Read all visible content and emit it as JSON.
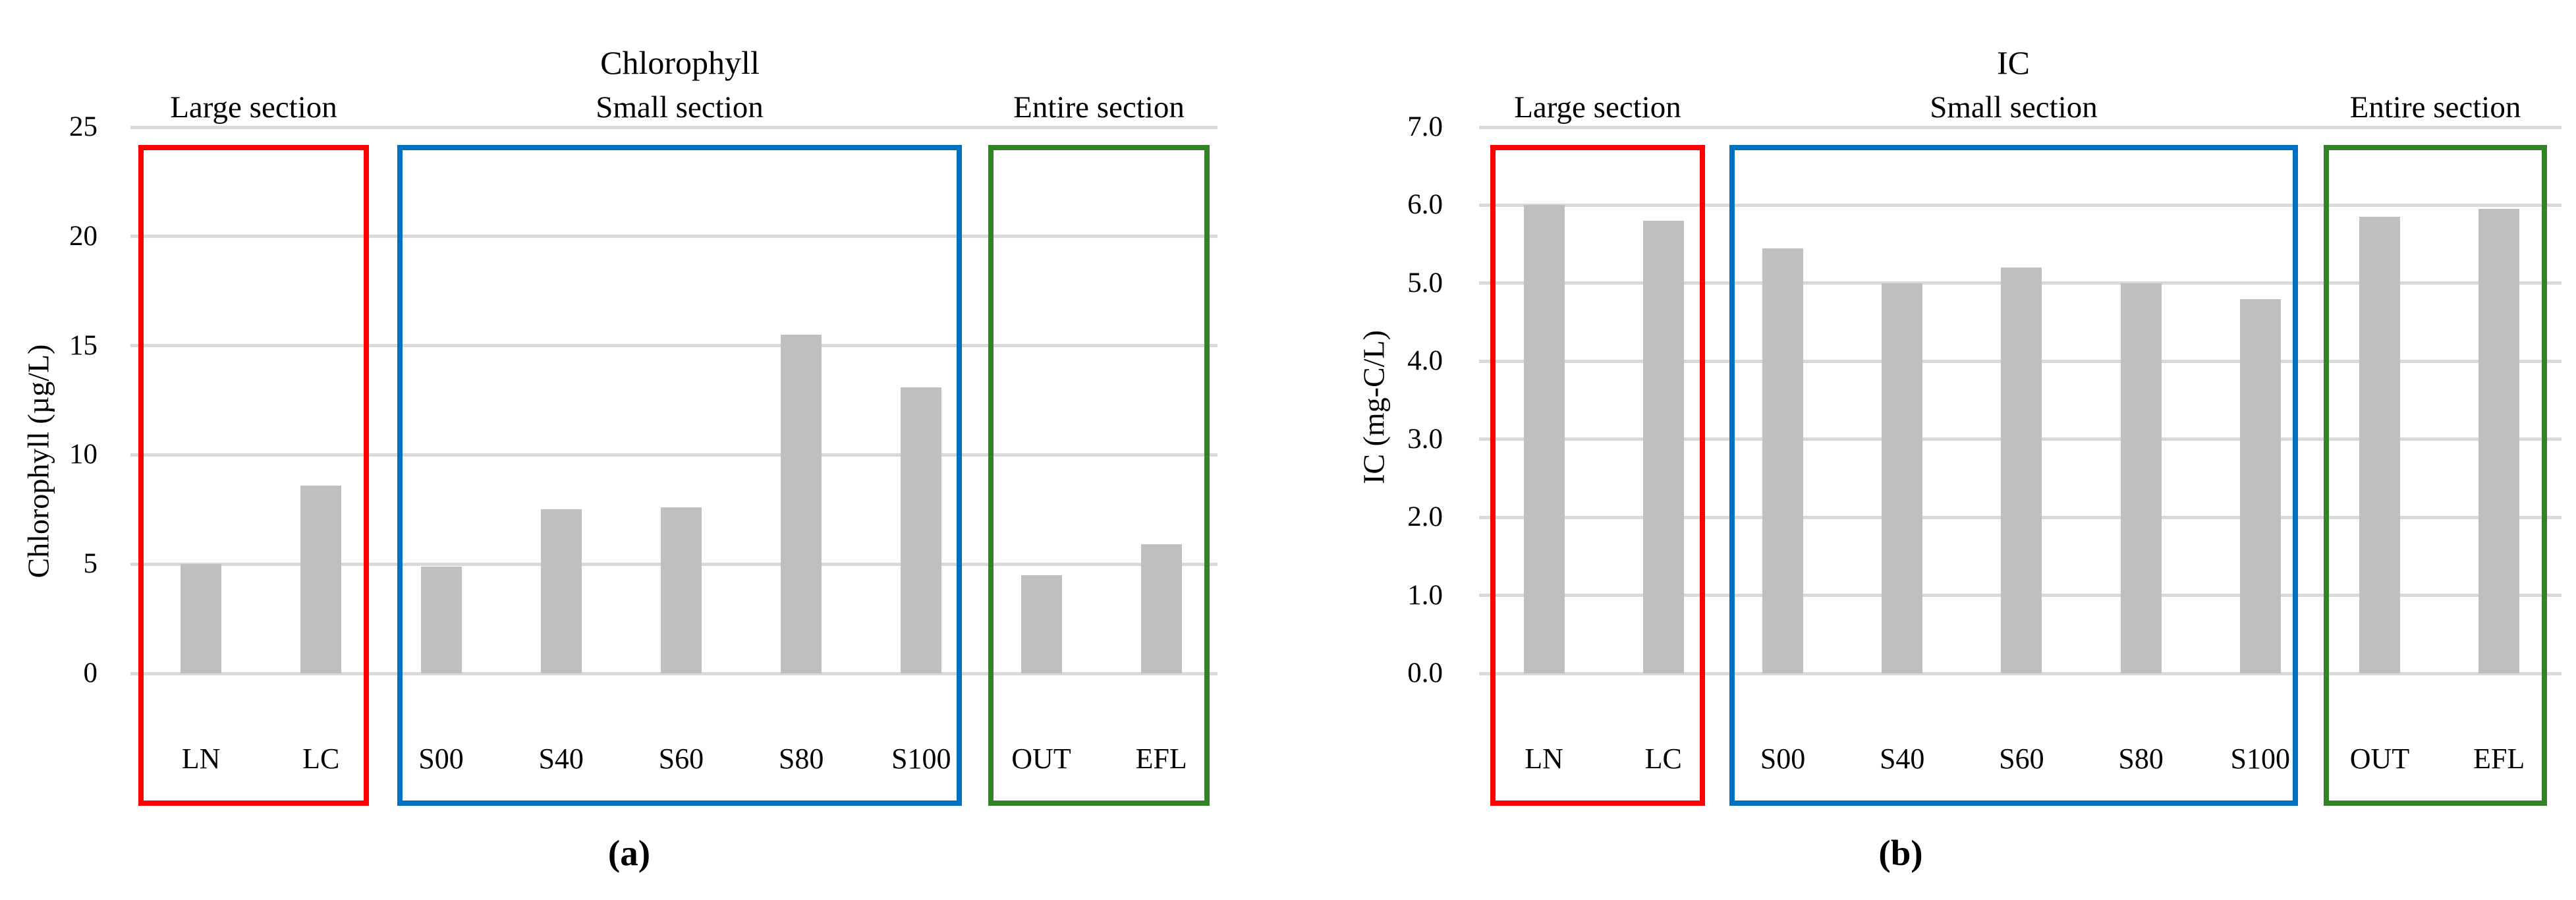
{
  "figure": {
    "background": "#ffffff",
    "bar_color": "#bfbfbf",
    "gridline_color": "#d9d9d9"
  },
  "chart_data": [
    {
      "type": "bar",
      "title": "Chlorophyll",
      "ylabel": "Chlorophyll (µg/L)",
      "caption": "(a)",
      "categories": [
        "LN",
        "LC",
        "S00",
        "S40",
        "S60",
        "S80",
        "S100",
        "OUT",
        "EFL"
      ],
      "values": [
        5.0,
        8.6,
        4.9,
        7.5,
        7.6,
        15.5,
        13.1,
        4.5,
        5.9
      ],
      "ylim": [
        0,
        25
      ],
      "yticks": [
        "0",
        "5",
        "10",
        "15",
        "20",
        "25"
      ],
      "grid": true,
      "legend": "none",
      "bar_color": "#bfbfbf",
      "sections": [
        {
          "label": "Large section",
          "color": "#ff0000",
          "categories": [
            "LN",
            "LC"
          ]
        },
        {
          "label": "Small section",
          "color": "#0070c0",
          "categories": [
            "S00",
            "S40",
            "S60",
            "S80",
            "S100"
          ]
        },
        {
          "label": "Entire section",
          "color": "#338227",
          "categories": [
            "OUT",
            "EFL"
          ]
        }
      ]
    },
    {
      "type": "bar",
      "title": "IC",
      "ylabel": "IC (mg-C/L)",
      "caption": "(b)",
      "categories": [
        "LN",
        "LC",
        "S00",
        "S40",
        "S60",
        "S80",
        "S100",
        "OUT",
        "EFL"
      ],
      "values": [
        6.0,
        5.8,
        5.45,
        5.0,
        5.2,
        5.0,
        4.8,
        5.85,
        5.95
      ],
      "ylim": [
        0,
        7
      ],
      "yticks": [
        "0.0",
        "1.0",
        "2.0",
        "3.0",
        "4.0",
        "5.0",
        "6.0",
        "7.0"
      ],
      "grid": true,
      "legend": "none",
      "bar_color": "#bfbfbf",
      "sections": [
        {
          "label": "Large section",
          "color": "#ff0000",
          "categories": [
            "LN",
            "LC"
          ]
        },
        {
          "label": "Small section",
          "color": "#0070c0",
          "categories": [
            "S00",
            "S40",
            "S60",
            "S80",
            "S100"
          ]
        },
        {
          "label": "Entire section",
          "color": "#338227",
          "categories": [
            "OUT",
            "EFL"
          ]
        }
      ]
    }
  ]
}
